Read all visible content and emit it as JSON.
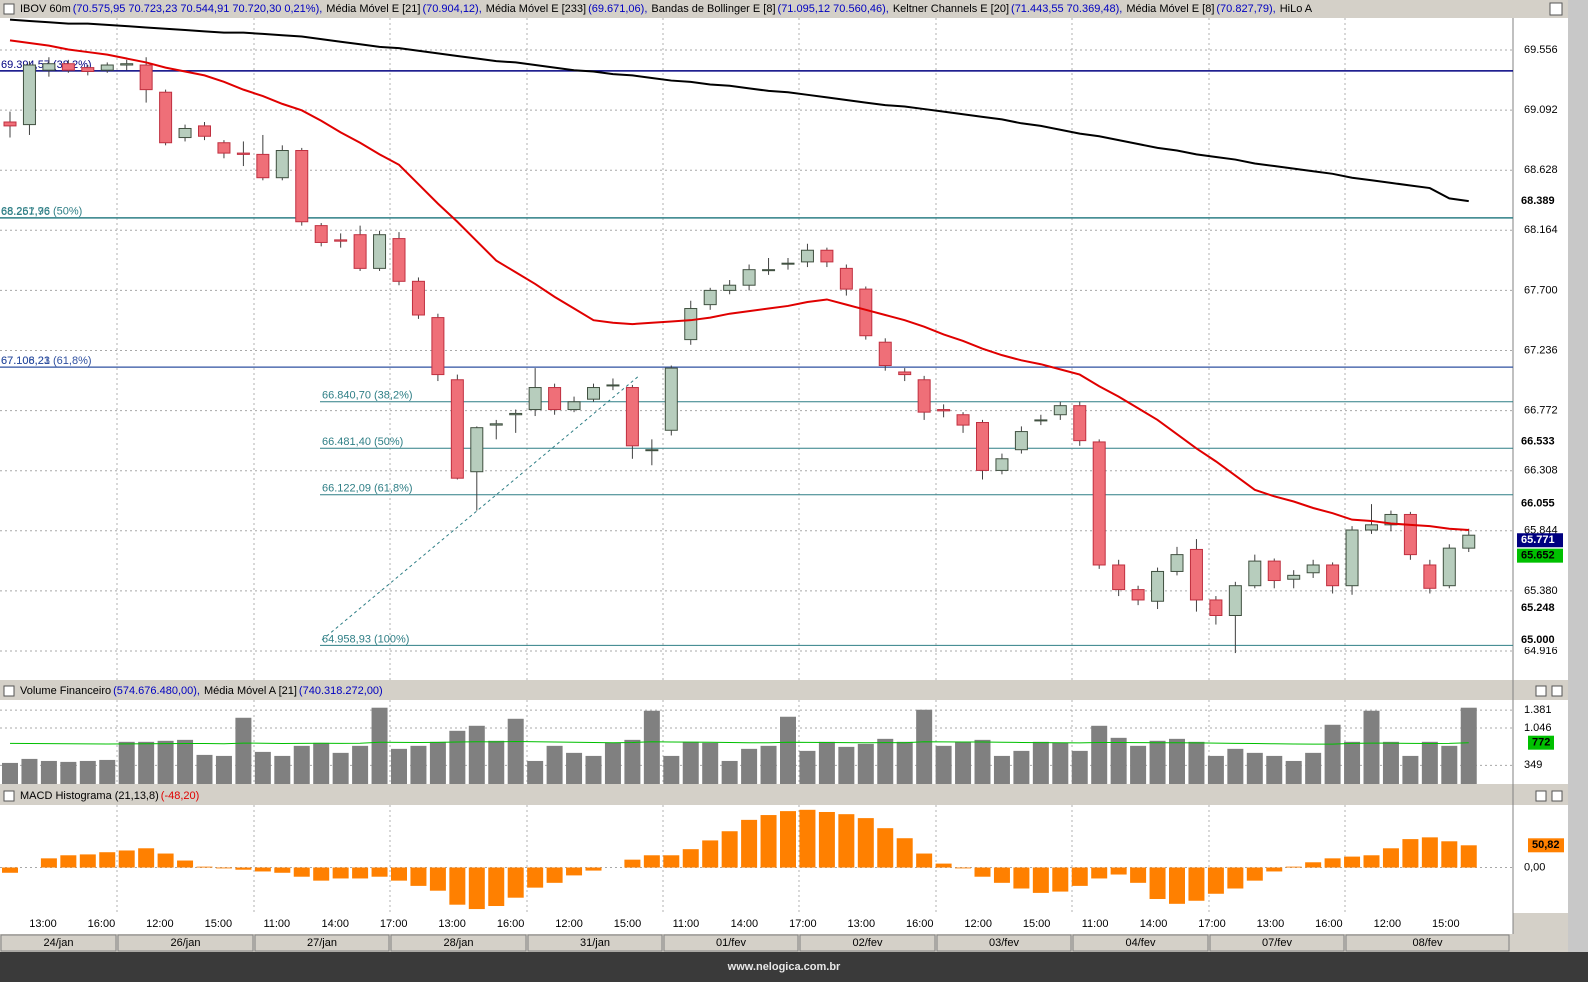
{
  "chart_data": [
    {
      "type": "candlestick",
      "header_items": [
        {
          "name": "IBOV 60m",
          "values": "(70.575,95  70.723,23  70.544,91  70.720,30  0,21%),",
          "color": "#0000c0"
        },
        {
          "name": "Média Móvel E [21]",
          "values": "(70.904,12),",
          "color": "#0000c0"
        },
        {
          "name": "Média Móvel E [233]",
          "values": "(69.671,06),",
          "color": "#0000c0"
        },
        {
          "name": "Bandas de Bollinger E [8]",
          "values": "(71.095,12  70.560,46),",
          "color": "#0000c0"
        },
        {
          "name": "Keltner Channels E [20]",
          "values": "(71.443,55  70.369,48),",
          "color": "#0000c0"
        },
        {
          "name": "Média Móvel E [8]",
          "values": "(70.827,79),",
          "color": "#0000c0"
        },
        {
          "name": "HiLo A"
        }
      ],
      "open": [
        69.0,
        68.98,
        69.4,
        69.45,
        69.42,
        69.4,
        69.44,
        69.44,
        69.23,
        68.88,
        68.97,
        68.84,
        68.76,
        68.75,
        68.57,
        68.78,
        68.2,
        68.09,
        68.13,
        67.87,
        68.1,
        67.77,
        67.49,
        67.01,
        66.3,
        66.66,
        66.74,
        66.78,
        66.95,
        66.78,
        66.86,
        66.97,
        66.95,
        66.47,
        66.62,
        67.32,
        67.59,
        67.7,
        67.74,
        67.86,
        67.91,
        67.92,
        68.01,
        67.87,
        67.71,
        67.3,
        67.07,
        67.01,
        66.78,
        66.74,
        66.68,
        66.31,
        66.47,
        66.7,
        66.74,
        66.81,
        66.53,
        65.58,
        65.39,
        65.3,
        65.53,
        65.7,
        65.31,
        65.19,
        65.42,
        65.61,
        65.47,
        65.52,
        65.58,
        65.42,
        65.85,
        65.89,
        65.97,
        65.58,
        65.42,
        65.71
      ],
      "high": [
        69.08,
        69.47,
        69.5,
        69.48,
        69.44,
        69.46,
        69.48,
        69.5,
        69.25,
        68.98,
        69.0,
        68.86,
        68.85,
        68.9,
        68.82,
        68.8,
        68.22,
        68.14,
        68.2,
        68.16,
        68.15,
        67.8,
        67.52,
        67.05,
        66.65,
        66.7,
        66.78,
        67.1,
        66.98,
        66.88,
        66.98,
        67.02,
        66.97,
        66.55,
        67.12,
        67.62,
        67.72,
        67.78,
        67.9,
        67.95,
        67.95,
        68.06,
        68.03,
        67.9,
        67.73,
        67.33,
        67.1,
        67.04,
        66.82,
        66.76,
        66.7,
        66.44,
        66.65,
        66.74,
        66.84,
        66.84,
        66.55,
        65.62,
        65.42,
        65.56,
        65.72,
        65.78,
        65.34,
        65.45,
        65.66,
        65.63,
        65.54,
        65.62,
        65.6,
        65.88,
        66.05,
        66.0,
        65.99,
        65.62,
        65.74,
        65.86
      ],
      "low": [
        68.88,
        68.9,
        69.35,
        69.38,
        69.36,
        69.38,
        69.4,
        69.15,
        68.82,
        68.85,
        68.86,
        68.72,
        68.66,
        68.55,
        68.55,
        68.2,
        68.04,
        68.03,
        67.85,
        67.85,
        67.74,
        67.48,
        67.0,
        66.24,
        66.0,
        66.55,
        66.6,
        66.73,
        66.74,
        66.76,
        66.84,
        66.93,
        66.4,
        66.35,
        66.58,
        67.28,
        67.55,
        67.67,
        67.7,
        67.82,
        67.86,
        67.88,
        67.88,
        67.66,
        67.32,
        67.08,
        67.0,
        66.7,
        66.72,
        66.6,
        66.24,
        66.28,
        66.44,
        66.66,
        66.7,
        66.5,
        65.55,
        65.34,
        65.27,
        65.24,
        65.5,
        65.22,
        65.12,
        64.9,
        65.4,
        65.4,
        65.4,
        65.48,
        65.36,
        65.35,
        65.82,
        65.84,
        65.62,
        65.36,
        65.4,
        65.68
      ],
      "close": [
        68.97,
        69.44,
        69.45,
        69.4,
        69.39,
        69.44,
        69.45,
        69.25,
        68.84,
        68.95,
        68.89,
        68.76,
        68.75,
        68.57,
        68.78,
        68.23,
        68.07,
        68.08,
        67.87,
        68.13,
        67.77,
        67.51,
        67.05,
        66.25,
        66.64,
        66.67,
        66.75,
        66.95,
        66.78,
        66.84,
        66.95,
        66.97,
        66.5,
        66.47,
        67.1,
        67.56,
        67.7,
        67.74,
        67.86,
        67.86,
        67.91,
        68.01,
        67.92,
        67.71,
        67.35,
        67.12,
        67.05,
        66.76,
        66.77,
        66.66,
        66.31,
        66.4,
        66.61,
        66.7,
        66.81,
        66.54,
        65.58,
        65.39,
        65.31,
        65.53,
        65.66,
        65.31,
        65.19,
        65.42,
        65.61,
        65.46,
        65.5,
        65.58,
        65.42,
        65.85,
        65.89,
        65.97,
        65.66,
        65.4,
        65.71,
        65.81
      ],
      "up_color": "#b7cdbd",
      "down_color": "#ef6f78",
      "series": [
        {
          "color": "#e00000",
          "values": [
            69.63,
            69.61,
            69.59,
            69.56,
            69.54,
            69.52,
            69.49,
            69.46,
            69.42,
            69.39,
            69.36,
            69.31,
            69.25,
            69.2,
            69.14,
            69.09,
            69.01,
            68.92,
            68.84,
            68.75,
            68.67,
            68.52,
            68.37,
            68.23,
            68.08,
            67.93,
            67.84,
            67.75,
            67.65,
            67.56,
            67.47,
            67.45,
            67.44,
            67.45,
            67.46,
            67.47,
            67.49,
            67.52,
            67.54,
            67.56,
            67.58,
            67.61,
            67.63,
            67.59,
            67.55,
            67.51,
            67.47,
            67.42,
            67.36,
            67.31,
            67.25,
            67.2,
            67.16,
            67.13,
            67.09,
            67.05,
            66.96,
            66.88,
            66.79,
            66.7,
            66.59,
            66.48,
            66.38,
            66.27,
            66.16,
            66.11,
            66.07,
            66.02,
            65.98,
            65.93,
            65.92,
            65.9,
            65.89,
            65.88,
            65.86,
            65.85
          ]
        },
        {
          "color": "#000000",
          "values": [
            69.79,
            69.78,
            69.77,
            69.76,
            69.76,
            69.75,
            69.74,
            69.73,
            69.72,
            69.71,
            69.7,
            69.69,
            69.69,
            69.68,
            69.67,
            69.66,
            69.64,
            69.62,
            69.6,
            69.58,
            69.57,
            69.55,
            69.53,
            69.51,
            69.49,
            69.47,
            69.46,
            69.44,
            69.42,
            69.4,
            69.39,
            69.37,
            69.36,
            69.34,
            69.32,
            69.31,
            69.29,
            69.28,
            69.26,
            69.24,
            69.23,
            69.21,
            69.19,
            69.17,
            69.15,
            69.13,
            69.12,
            69.1,
            69.08,
            69.06,
            69.04,
            69.02,
            68.99,
            68.97,
            68.94,
            68.91,
            68.89,
            68.86,
            68.83,
            68.8,
            68.78,
            68.75,
            68.73,
            68.71,
            68.68,
            68.66,
            68.64,
            68.62,
            68.6,
            68.57,
            68.55,
            68.53,
            68.51,
            68.49,
            68.41,
            68.389
          ]
        }
      ],
      "levels_left": [
        {
          "value": 69.39457,
          "label": "69.394,57 (38,2%)",
          "color": "#000080"
        },
        {
          "value": 68.26196,
          "label": "68.261,96 (50%)",
          "color": "#2f7f86"
        },
        {
          "value": 68.25776,
          "label": "68.257,76",
          "color": "#2f7f86"
        },
        {
          "value": 67.10621,
          "label": "67.106,21 (61,8%)",
          "color": "#2f50a0"
        },
        {
          "value": 67.10823,
          "label": "67.108,23",
          "color": "#2f50a0"
        }
      ],
      "levels_right": [
        {
          "value": 66.8407,
          "label": "66.840,70 (38,2%)",
          "color": "#2f7f86"
        },
        {
          "value": 66.4814,
          "label": "66.481,40 (50%)",
          "color": "#2f7f86"
        },
        {
          "value": 66.12209,
          "label": "66.122,09 (61,8%)",
          "color": "#2f7f86"
        },
        {
          "value": 64.95893,
          "label": "64.958,93 (100%)",
          "color": "#2f7f86"
        }
      ],
      "badges": [
        {
          "value": 68.389
        },
        {
          "value": 66.533
        },
        {
          "value": 66.055
        },
        {
          "value": 65.771,
          "color": "#000080"
        },
        {
          "value": 65.652,
          "color": "#00c000"
        },
        {
          "value": 65.248
        },
        {
          "value": 65,
          "label": "65.000"
        }
      ],
      "ylim": [
        64.692,
        69.803
      ],
      "yticks": [
        69.556,
        69.092,
        68.628,
        68.164,
        {
          "value": 67.7,
          "label": "67.700"
        },
        67.236,
        66.772,
        66.308,
        65.844,
        {
          "value": 65.38,
          "label": "65.380"
        },
        64.916
      ]
    },
    {
      "type": "bar",
      "header_items": [
        {
          "name": "Volume Financeiro",
          "values": "(574.676.480,00),",
          "color": "#0000c0"
        },
        {
          "name": "Média Móvel A [21]",
          "values": "(740.318.272,00)",
          "color": "#0000c0"
        }
      ],
      "series": [
        {
          "type": "bar",
          "color": "#808080",
          "values": [
            394,
            469,
            431,
            413,
            431,
            450,
            788,
            788,
            807,
            825,
            544,
            525,
            1238,
            600,
            525,
            713,
            769,
            582,
            713,
            1426,
            657,
            713,
            788,
            994,
            1088,
            807,
            1219,
            431,
            713,
            582,
            525,
            769,
            825,
            1369,
            525,
            788,
            769,
            431,
            657,
            713,
            1257,
            619,
            788,
            694,
            750,
            844,
            788,
            1388,
            713,
            788,
            825,
            525,
            619,
            788,
            769,
            619,
            1088,
            863,
            713,
            807,
            844,
            788,
            525,
            657,
            582,
            525,
            431,
            582,
            1107,
            788,
            1369,
            788,
            525,
            788,
            713,
            1426
          ]
        },
        {
          "type": "line",
          "color": "#00c000",
          "values": [
            760,
            758,
            755,
            752,
            750,
            748,
            750,
            752,
            755,
            758,
            756,
            752,
            765,
            762,
            758,
            760,
            762,
            760,
            762,
            780,
            778,
            776,
            778,
            785,
            790,
            788,
            795,
            790,
            785,
            780,
            775,
            772,
            775,
            790,
            785,
            783,
            780,
            775,
            772,
            770,
            780,
            778,
            776,
            774,
            772,
            774,
            772,
            790,
            788,
            786,
            784,
            780,
            776,
            774,
            772,
            768,
            775,
            776,
            774,
            772,
            770,
            768,
            764,
            760,
            758,
            752,
            748,
            745,
            746,
            760,
            765,
            764,
            760,
            758,
            760,
            772
          ]
        }
      ],
      "ylim": [
        0,
        1570
      ],
      "yticks": [
        {
          "value": 1381,
          "label": "1.381"
        },
        {
          "value": 1046,
          "label": "1.046"
        },
        349
      ]
    },
    {
      "type": "bar",
      "header_items": [
        {
          "name": "MACD Histograma (21,13,8)",
          "values": "(-48,20)",
          "color": "#e00000"
        }
      ],
      "color": "#ff8000",
      "values": [
        -12,
        0,
        21,
        28,
        30,
        35,
        39,
        44,
        32,
        16,
        2,
        -2,
        -5,
        -9,
        -12,
        -21,
        -30,
        -25,
        -25,
        -21,
        -30,
        -42,
        -53,
        -85,
        -95,
        -88,
        -69,
        -46,
        -35,
        -18,
        -7,
        0,
        18,
        28,
        28,
        42,
        62,
        83,
        109,
        120,
        129,
        132,
        127,
        122,
        113,
        90,
        67,
        32,
        9,
        -2,
        -21,
        -35,
        -48,
        -58,
        -55,
        -42,
        -25,
        -16,
        -35,
        -72,
        -83,
        -76,
        -60,
        -48,
        -30,
        -9,
        2,
        12,
        21,
        25,
        28,
        44,
        65,
        69,
        60,
        50.82
      ],
      "badge": {
        "value": 50.82,
        "label": "50,82"
      },
      "ylim": [
        -104,
        143
      ],
      "yticks": [
        {
          "value": 0,
          "label": "0,00"
        }
      ],
      "time_labels": [
        "13:00",
        "16:00",
        "12:00",
        "15:00",
        "11:00",
        "14:00",
        "17:00",
        "13:00",
        "16:00",
        "12:00",
        "15:00",
        "11:00",
        "14:00",
        "17:00",
        "13:00",
        "16:00",
        "12:00",
        "15:00",
        "11:00",
        "14:00",
        "17:00",
        "13:00",
        "16:00",
        "12:00",
        "15:00"
      ],
      "date_labels": [
        "24/jan",
        "26/jan",
        "27/jan",
        "28/jan",
        "31/jan",
        "01/fev",
        "02/fev",
        "03/fev",
        "04/fev",
        "07/fev",
        "08/fev"
      ]
    }
  ],
  "footer": "www.nelogica.com.br"
}
